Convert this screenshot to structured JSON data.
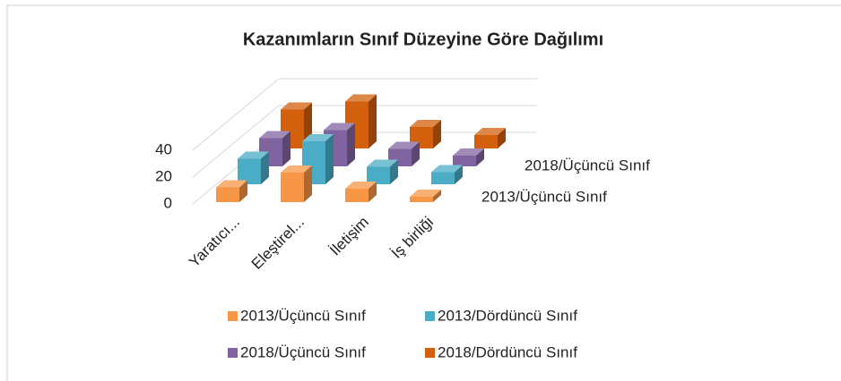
{
  "chart_data": {
    "type": "bar3d",
    "title": "Kazanımların Sınıf Düzeyine Göre Dağılımı",
    "categories": [
      "Yaratıcı...",
      "Eleştirel...",
      "İletişim",
      "İş birliği"
    ],
    "series": [
      {
        "name": "2013/Üçüncü Sınıf",
        "color": "#f79646",
        "values": [
          11,
          22,
          10,
          4
        ]
      },
      {
        "name": "2013/Dördüncü Sınıf",
        "color": "#4bacc6",
        "values": [
          19,
          32,
          13,
          9
        ]
      },
      {
        "name": "2018/Üçüncü Sınıf",
        "color": "#8064a2",
        "values": [
          21,
          27,
          13,
          8
        ]
      },
      {
        "name": "2018/Dördüncü Sınıf",
        "color": "#d2600c",
        "values": [
          29,
          35,
          16,
          10
        ]
      }
    ],
    "ylim": [
      0,
      60
    ],
    "yticks": [
      0,
      20,
      40
    ],
    "grid": true
  }
}
